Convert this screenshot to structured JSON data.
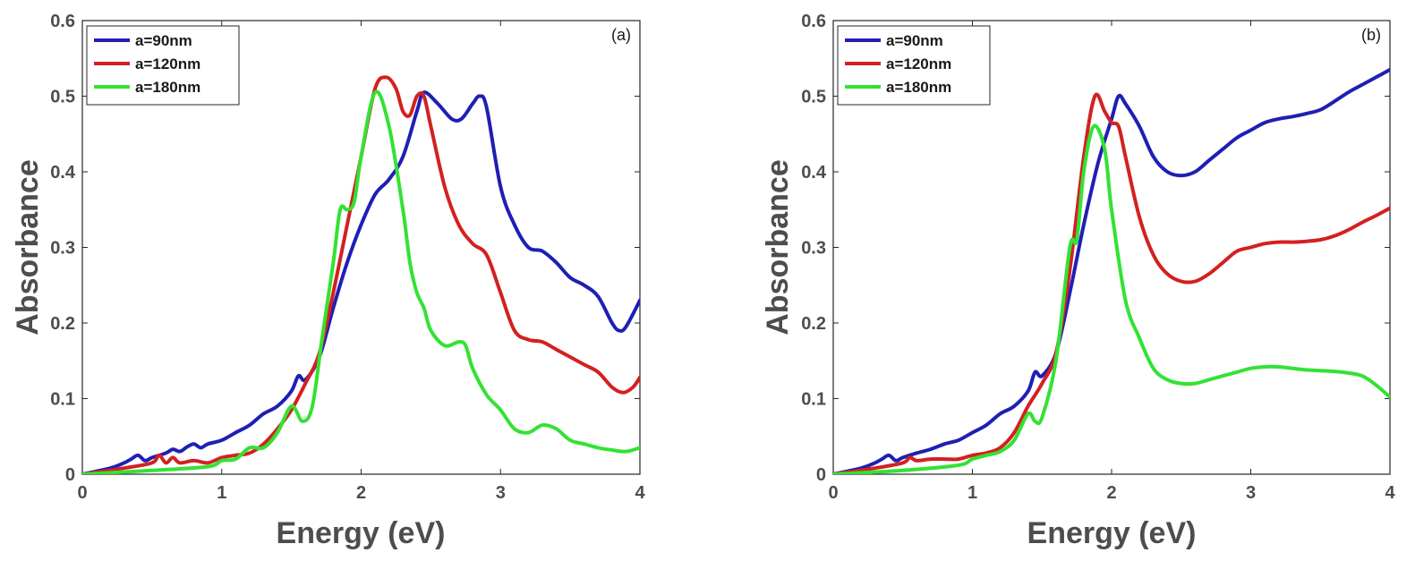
{
  "chart_data": [
    {
      "type": "line",
      "panel_label": "(a)",
      "xlabel": "Energy (eV)",
      "ylabel": "Absorbance",
      "xlim": [
        0,
        4
      ],
      "ylim": [
        0,
        0.6
      ],
      "xticks": [
        "0",
        "1",
        "2",
        "3",
        "4"
      ],
      "yticks": [
        "0",
        "0.1",
        "0.2",
        "0.3",
        "0.4",
        "0.5",
        "0.6"
      ],
      "legend_position": "top-left",
      "series": [
        {
          "name": "a=90nm",
          "color": "#1f1fb4",
          "points": [
            [
              0,
              0
            ],
            [
              0.2,
              0.008
            ],
            [
              0.3,
              0.015
            ],
            [
              0.35,
              0.02
            ],
            [
              0.4,
              0.025
            ],
            [
              0.45,
              0.018
            ],
            [
              0.5,
              0.022
            ],
            [
              0.6,
              0.028
            ],
            [
              0.65,
              0.033
            ],
            [
              0.7,
              0.03
            ],
            [
              0.75,
              0.036
            ],
            [
              0.8,
              0.04
            ],
            [
              0.85,
              0.035
            ],
            [
              0.9,
              0.04
            ],
            [
              1.0,
              0.045
            ],
            [
              1.1,
              0.055
            ],
            [
              1.2,
              0.065
            ],
            [
              1.3,
              0.08
            ],
            [
              1.4,
              0.09
            ],
            [
              1.5,
              0.11
            ],
            [
              1.55,
              0.13
            ],
            [
              1.6,
              0.125
            ],
            [
              1.7,
              0.155
            ],
            [
              1.8,
              0.22
            ],
            [
              1.9,
              0.28
            ],
            [
              2.0,
              0.33
            ],
            [
              2.1,
              0.37
            ],
            [
              2.2,
              0.39
            ],
            [
              2.3,
              0.42
            ],
            [
              2.4,
              0.48
            ],
            [
              2.45,
              0.505
            ],
            [
              2.55,
              0.49
            ],
            [
              2.65,
              0.47
            ],
            [
              2.72,
              0.47
            ],
            [
              2.8,
              0.49
            ],
            [
              2.85,
              0.5
            ],
            [
              2.9,
              0.485
            ],
            [
              3.0,
              0.38
            ],
            [
              3.1,
              0.33
            ],
            [
              3.2,
              0.3
            ],
            [
              3.3,
              0.295
            ],
            [
              3.4,
              0.28
            ],
            [
              3.5,
              0.26
            ],
            [
              3.6,
              0.25
            ],
            [
              3.7,
              0.235
            ],
            [
              3.8,
              0.2
            ],
            [
              3.85,
              0.19
            ],
            [
              3.9,
              0.195
            ],
            [
              4.0,
              0.23
            ]
          ]
        },
        {
          "name": "a=120nm",
          "color": "#d42020",
          "points": [
            [
              0,
              0
            ],
            [
              0.3,
              0.008
            ],
            [
              0.5,
              0.015
            ],
            [
              0.55,
              0.025
            ],
            [
              0.6,
              0.015
            ],
            [
              0.65,
              0.022
            ],
            [
              0.7,
              0.015
            ],
            [
              0.8,
              0.018
            ],
            [
              0.9,
              0.015
            ],
            [
              1.0,
              0.022
            ],
            [
              1.1,
              0.025
            ],
            [
              1.2,
              0.028
            ],
            [
              1.3,
              0.04
            ],
            [
              1.4,
              0.06
            ],
            [
              1.5,
              0.085
            ],
            [
              1.6,
              0.12
            ],
            [
              1.7,
              0.16
            ],
            [
              1.8,
              0.24
            ],
            [
              1.9,
              0.33
            ],
            [
              2.0,
              0.42
            ],
            [
              2.1,
              0.51
            ],
            [
              2.18,
              0.525
            ],
            [
              2.25,
              0.51
            ],
            [
              2.3,
              0.48
            ],
            [
              2.35,
              0.475
            ],
            [
              2.4,
              0.5
            ],
            [
              2.45,
              0.5
            ],
            [
              2.5,
              0.46
            ],
            [
              2.6,
              0.38
            ],
            [
              2.7,
              0.33
            ],
            [
              2.8,
              0.305
            ],
            [
              2.9,
              0.29
            ],
            [
              3.0,
              0.24
            ],
            [
              3.1,
              0.19
            ],
            [
              3.2,
              0.178
            ],
            [
              3.3,
              0.175
            ],
            [
              3.4,
              0.165
            ],
            [
              3.5,
              0.155
            ],
            [
              3.6,
              0.145
            ],
            [
              3.7,
              0.135
            ],
            [
              3.8,
              0.115
            ],
            [
              3.88,
              0.108
            ],
            [
              3.95,
              0.115
            ],
            [
              4.0,
              0.128
            ]
          ]
        },
        {
          "name": "a=180nm",
          "color": "#33e233",
          "points": [
            [
              0,
              0
            ],
            [
              0.5,
              0.005
            ],
            [
              0.9,
              0.01
            ],
            [
              1.0,
              0.018
            ],
            [
              1.1,
              0.02
            ],
            [
              1.2,
              0.035
            ],
            [
              1.3,
              0.035
            ],
            [
              1.4,
              0.055
            ],
            [
              1.5,
              0.09
            ],
            [
              1.58,
              0.07
            ],
            [
              1.65,
              0.09
            ],
            [
              1.72,
              0.18
            ],
            [
              1.8,
              0.28
            ],
            [
              1.85,
              0.35
            ],
            [
              1.9,
              0.35
            ],
            [
              1.95,
              0.36
            ],
            [
              2.0,
              0.42
            ],
            [
              2.1,
              0.505
            ],
            [
              2.2,
              0.46
            ],
            [
              2.3,
              0.35
            ],
            [
              2.35,
              0.28
            ],
            [
              2.4,
              0.24
            ],
            [
              2.45,
              0.22
            ],
            [
              2.5,
              0.19
            ],
            [
              2.6,
              0.17
            ],
            [
              2.7,
              0.175
            ],
            [
              2.75,
              0.17
            ],
            [
              2.8,
              0.14
            ],
            [
              2.9,
              0.105
            ],
            [
              3.0,
              0.085
            ],
            [
              3.1,
              0.06
            ],
            [
              3.2,
              0.055
            ],
            [
              3.3,
              0.065
            ],
            [
              3.4,
              0.06
            ],
            [
              3.5,
              0.045
            ],
            [
              3.6,
              0.04
            ],
            [
              3.7,
              0.035
            ],
            [
              3.8,
              0.032
            ],
            [
              3.9,
              0.03
            ],
            [
              4.0,
              0.035
            ]
          ]
        }
      ]
    },
    {
      "type": "line",
      "panel_label": "(b)",
      "xlabel": "Energy (eV)",
      "ylabel": "Absorbance",
      "xlim": [
        0,
        4
      ],
      "ylim": [
        0,
        0.6
      ],
      "xticks": [
        "0",
        "1",
        "2",
        "3",
        "4"
      ],
      "yticks": [
        "0",
        "0.1",
        "0.2",
        "0.3",
        "0.4",
        "0.5",
        "0.6"
      ],
      "legend_position": "top-left",
      "series": [
        {
          "name": "a=90nm",
          "color": "#1f1fb4",
          "points": [
            [
              0,
              0
            ],
            [
              0.2,
              0.008
            ],
            [
              0.3,
              0.015
            ],
            [
              0.35,
              0.02
            ],
            [
              0.4,
              0.025
            ],
            [
              0.45,
              0.018
            ],
            [
              0.5,
              0.022
            ],
            [
              0.6,
              0.028
            ],
            [
              0.7,
              0.033
            ],
            [
              0.8,
              0.04
            ],
            [
              0.9,
              0.045
            ],
            [
              1.0,
              0.055
            ],
            [
              1.1,
              0.065
            ],
            [
              1.2,
              0.08
            ],
            [
              1.3,
              0.09
            ],
            [
              1.4,
              0.11
            ],
            [
              1.45,
              0.135
            ],
            [
              1.5,
              0.13
            ],
            [
              1.6,
              0.16
            ],
            [
              1.7,
              0.24
            ],
            [
              1.8,
              0.33
            ],
            [
              1.9,
              0.41
            ],
            [
              2.0,
              0.47
            ],
            [
              2.05,
              0.5
            ],
            [
              2.1,
              0.49
            ],
            [
              2.2,
              0.46
            ],
            [
              2.3,
              0.42
            ],
            [
              2.4,
              0.4
            ],
            [
              2.5,
              0.395
            ],
            [
              2.6,
              0.4
            ],
            [
              2.7,
              0.415
            ],
            [
              2.8,
              0.43
            ],
            [
              2.9,
              0.445
            ],
            [
              3.0,
              0.455
            ],
            [
              3.1,
              0.465
            ],
            [
              3.2,
              0.47
            ],
            [
              3.3,
              0.473
            ],
            [
              3.4,
              0.477
            ],
            [
              3.5,
              0.482
            ],
            [
              3.6,
              0.493
            ],
            [
              3.7,
              0.505
            ],
            [
              3.8,
              0.515
            ],
            [
              3.9,
              0.525
            ],
            [
              4.0,
              0.535
            ]
          ]
        },
        {
          "name": "a=120nm",
          "color": "#d42020",
          "points": [
            [
              0,
              0
            ],
            [
              0.3,
              0.008
            ],
            [
              0.5,
              0.015
            ],
            [
              0.55,
              0.022
            ],
            [
              0.6,
              0.018
            ],
            [
              0.7,
              0.02
            ],
            [
              0.8,
              0.02
            ],
            [
              0.9,
              0.02
            ],
            [
              1.0,
              0.025
            ],
            [
              1.1,
              0.028
            ],
            [
              1.2,
              0.035
            ],
            [
              1.3,
              0.055
            ],
            [
              1.4,
              0.09
            ],
            [
              1.5,
              0.12
            ],
            [
              1.6,
              0.16
            ],
            [
              1.7,
              0.27
            ],
            [
              1.8,
              0.42
            ],
            [
              1.88,
              0.5
            ],
            [
              1.95,
              0.48
            ],
            [
              2.0,
              0.465
            ],
            [
              2.05,
              0.46
            ],
            [
              2.1,
              0.42
            ],
            [
              2.2,
              0.34
            ],
            [
              2.3,
              0.29
            ],
            [
              2.4,
              0.265
            ],
            [
              2.5,
              0.255
            ],
            [
              2.6,
              0.255
            ],
            [
              2.7,
              0.265
            ],
            [
              2.8,
              0.28
            ],
            [
              2.9,
              0.295
            ],
            [
              3.0,
              0.3
            ],
            [
              3.1,
              0.305
            ],
            [
              3.2,
              0.307
            ],
            [
              3.3,
              0.307
            ],
            [
              3.4,
              0.308
            ],
            [
              3.5,
              0.31
            ],
            [
              3.6,
              0.315
            ],
            [
              3.7,
              0.323
            ],
            [
              3.8,
              0.333
            ],
            [
              3.9,
              0.342
            ],
            [
              4.0,
              0.352
            ]
          ]
        },
        {
          "name": "a=180nm",
          "color": "#33e233",
          "points": [
            [
              0,
              0
            ],
            [
              0.5,
              0.005
            ],
            [
              0.9,
              0.012
            ],
            [
              1.0,
              0.02
            ],
            [
              1.1,
              0.025
            ],
            [
              1.2,
              0.03
            ],
            [
              1.3,
              0.045
            ],
            [
              1.4,
              0.08
            ],
            [
              1.45,
              0.07
            ],
            [
              1.5,
              0.075
            ],
            [
              1.6,
              0.15
            ],
            [
              1.7,
              0.3
            ],
            [
              1.75,
              0.31
            ],
            [
              1.8,
              0.4
            ],
            [
              1.87,
              0.46
            ],
            [
              1.95,
              0.43
            ],
            [
              2.0,
              0.35
            ],
            [
              2.1,
              0.23
            ],
            [
              2.2,
              0.18
            ],
            [
              2.3,
              0.14
            ],
            [
              2.4,
              0.125
            ],
            [
              2.5,
              0.12
            ],
            [
              2.6,
              0.12
            ],
            [
              2.7,
              0.125
            ],
            [
              2.8,
              0.13
            ],
            [
              2.9,
              0.135
            ],
            [
              3.0,
              0.14
            ],
            [
              3.1,
              0.142
            ],
            [
              3.2,
              0.142
            ],
            [
              3.3,
              0.14
            ],
            [
              3.4,
              0.138
            ],
            [
              3.5,
              0.137
            ],
            [
              3.6,
              0.136
            ],
            [
              3.7,
              0.134
            ],
            [
              3.8,
              0.13
            ],
            [
              3.9,
              0.118
            ],
            [
              4.0,
              0.102
            ]
          ]
        }
      ]
    }
  ]
}
